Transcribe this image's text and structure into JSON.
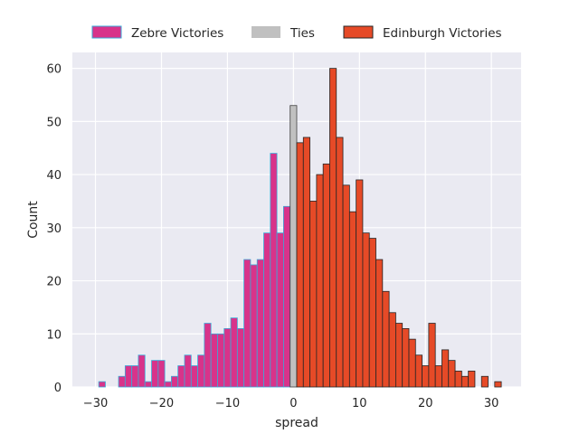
{
  "chart_data": {
    "type": "bar",
    "subtype": "histogram",
    "title": "",
    "xlabel": "spread",
    "ylabel": "Count",
    "xlim": [
      -33.5,
      34.5
    ],
    "ylim": [
      0,
      63
    ],
    "xticks": [
      -30,
      -20,
      -10,
      0,
      10,
      20,
      30
    ],
    "xtick_labels": [
      "−30",
      "−20",
      "−10",
      "0",
      "10",
      "20",
      "30"
    ],
    "yticks": [
      0,
      10,
      20,
      30,
      40,
      50,
      60
    ],
    "grid": true,
    "legend_position": "top-center",
    "bin_width": 1,
    "series": [
      {
        "name": "Zebre Victories",
        "color": "#d8338a",
        "edgecolor": "#3aa9d8",
        "x": [
          -29,
          -26,
          -25,
          -24,
          -23,
          -22,
          -21,
          -20,
          -19,
          -18,
          -17,
          -16,
          -15,
          -14,
          -13,
          -12,
          -11,
          -10,
          -9,
          -8,
          -7,
          -6,
          -5,
          -4,
          -3,
          -2,
          -1
        ],
        "values": [
          1,
          2,
          4,
          4,
          6,
          1,
          5,
          5,
          1,
          2,
          4,
          6,
          4,
          6,
          12,
          10,
          10,
          11,
          13,
          11,
          24,
          23,
          24,
          29,
          44,
          29,
          34
        ]
      },
      {
        "name": "Ties",
        "color": "#c0c0c0",
        "edgecolor": "#404040",
        "x": [
          0
        ],
        "values": [
          53
        ]
      },
      {
        "name": "Edinburgh Victories",
        "color": "#e64a27",
        "edgecolor": "#262626",
        "x": [
          1,
          2,
          3,
          4,
          5,
          6,
          7,
          8,
          9,
          10,
          11,
          12,
          13,
          14,
          15,
          16,
          17,
          18,
          19,
          20,
          21,
          22,
          23,
          24,
          25,
          26,
          27,
          29,
          31
        ],
        "values": [
          46,
          47,
          35,
          40,
          42,
          60,
          47,
          38,
          33,
          39,
          29,
          28,
          24,
          18,
          14,
          12,
          11,
          9,
          6,
          4,
          12,
          4,
          7,
          5,
          3,
          2,
          3,
          2,
          1
        ]
      }
    ]
  }
}
